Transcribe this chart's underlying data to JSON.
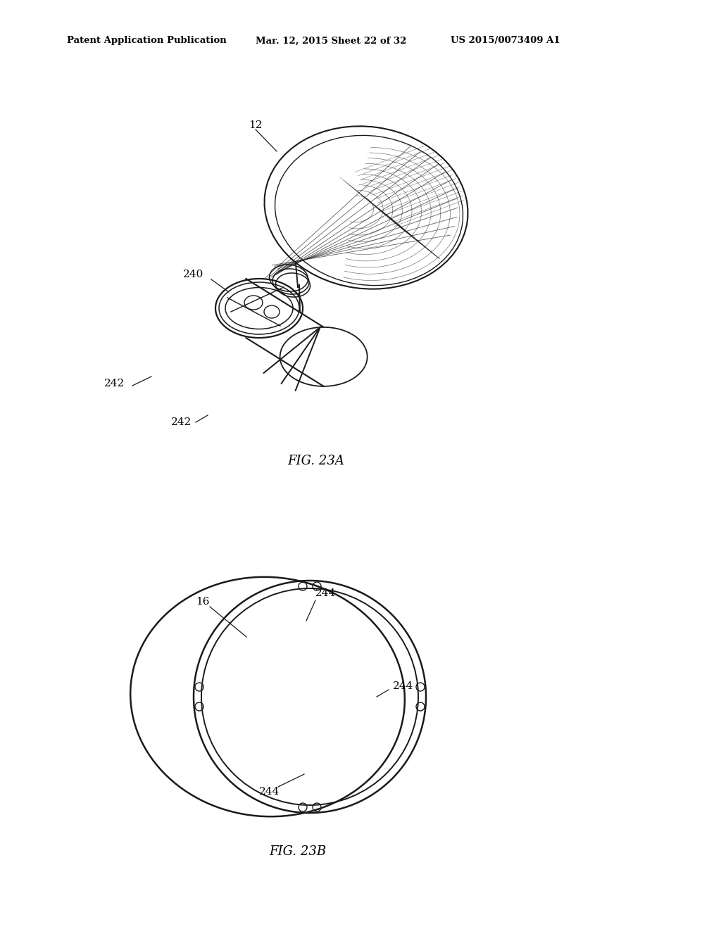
{
  "bg_color": "#ffffff",
  "header_left": "Patent Application Publication",
  "header_mid": "Mar. 12, 2015 Sheet 22 of 32",
  "header_right": "US 2015/0073409 A1",
  "fig23a_caption": "FIG. 23A",
  "fig23b_caption": "FIG. 23B",
  "lbl_12": "12",
  "lbl_240": "240",
  "lbl_242_1": "242",
  "lbl_242_2": "242",
  "lbl_16": "16",
  "lbl_244_top": "244",
  "lbl_244_right": "244",
  "lbl_244_bot": "244",
  "line_color": "#1a1a1a"
}
